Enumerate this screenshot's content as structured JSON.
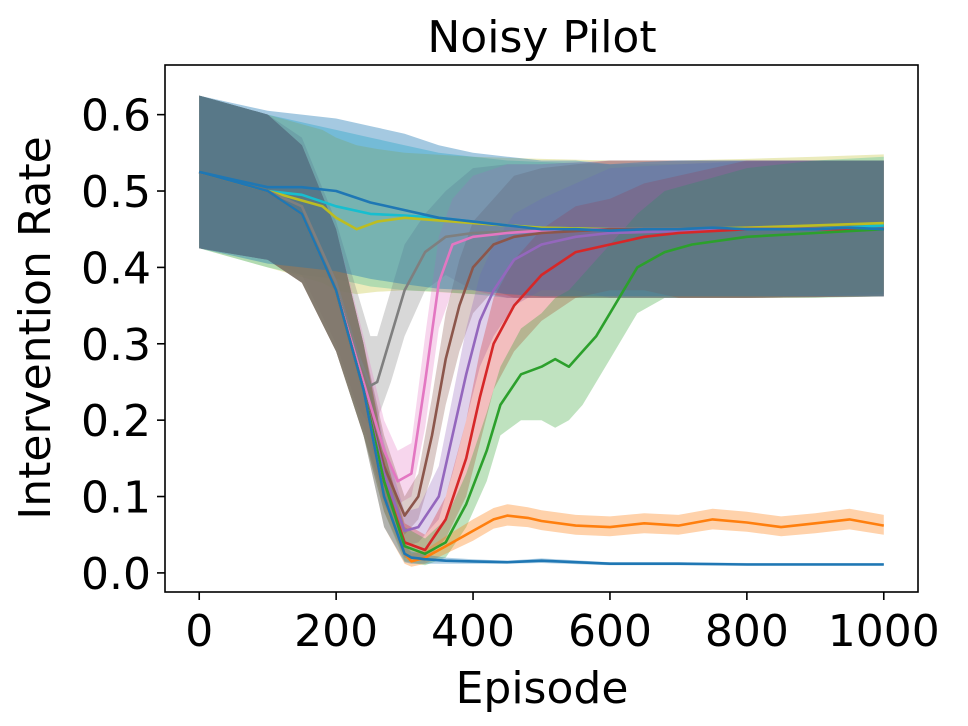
{
  "chart_data": {
    "type": "line",
    "title": "Noisy Pilot",
    "xlabel": "Episode",
    "ylabel": "Intervention Rate",
    "xlim": [
      -50,
      1050
    ],
    "ylim": [
      -0.025,
      0.665
    ],
    "xticks": [
      0,
      200,
      400,
      600,
      800,
      1000
    ],
    "xtick_labels": [
      "0",
      "200",
      "400",
      "600",
      "800",
      "1000"
    ],
    "yticks": [
      0.0,
      0.1,
      0.2,
      0.3,
      0.4,
      0.5,
      0.6
    ],
    "ytick_labels": [
      "0.0",
      "0.1",
      "0.2",
      "0.3",
      "0.4",
      "0.5",
      "0.6"
    ],
    "grid": false,
    "legend": false,
    "shaded_bands": true,
    "series": [
      {
        "color": "#17becf",
        "band_alpha": 0.35,
        "x": [
          0,
          20,
          60,
          100,
          150,
          200,
          250,
          300,
          350,
          400,
          450,
          500,
          600,
          700,
          800,
          900,
          1000
        ],
        "y": [
          0.525,
          0.52,
          0.51,
          0.5,
          0.495,
          0.48,
          0.47,
          0.468,
          0.465,
          0.46,
          0.455,
          0.452,
          0.45,
          0.45,
          0.45,
          0.45,
          0.455
        ],
        "lower": [
          0.425,
          0.42,
          0.41,
          0.4,
          0.39,
          0.385,
          0.375,
          0.37,
          0.368,
          0.365,
          0.36,
          0.36,
          0.36,
          0.36,
          0.36,
          0.362,
          0.365
        ],
        "upper": [
          0.625,
          0.62,
          0.61,
          0.6,
          0.59,
          0.58,
          0.57,
          0.56,
          0.55,
          0.545,
          0.54,
          0.538,
          0.535,
          0.535,
          0.538,
          0.54,
          0.545
        ]
      },
      {
        "color": "#bcbd22",
        "band_alpha": 0.3,
        "x": [
          0,
          60,
          120,
          180,
          200,
          230,
          260,
          300,
          400,
          500,
          600,
          700,
          800,
          900,
          1000
        ],
        "y": [
          0.525,
          0.51,
          0.495,
          0.48,
          0.465,
          0.45,
          0.46,
          0.465,
          0.458,
          0.452,
          0.45,
          0.45,
          0.452,
          0.455,
          0.458
        ],
        "lower": [
          0.425,
          0.41,
          0.395,
          0.38,
          0.37,
          0.365,
          0.368,
          0.37,
          0.365,
          0.362,
          0.362,
          0.362,
          0.362,
          0.365,
          0.368
        ],
        "upper": [
          0.625,
          0.61,
          0.595,
          0.58,
          0.57,
          0.56,
          0.555,
          0.55,
          0.545,
          0.542,
          0.54,
          0.54,
          0.542,
          0.545,
          0.548
        ]
      },
      {
        "color": "#7f7f7f",
        "band_alpha": 0.3,
        "x": [
          0,
          100,
          150,
          200,
          230,
          250,
          260,
          280,
          300,
          330,
          360,
          400,
          450,
          500,
          600,
          800,
          1000
        ],
        "y": [
          0.525,
          0.5,
          0.48,
          0.38,
          0.29,
          0.245,
          0.25,
          0.31,
          0.37,
          0.42,
          0.44,
          0.445,
          0.447,
          0.448,
          0.45,
          0.45,
          0.45
        ],
        "lower": [
          0.425,
          0.41,
          0.39,
          0.3,
          0.22,
          0.19,
          0.2,
          0.25,
          0.31,
          0.37,
          0.39,
          0.37,
          0.36,
          0.36,
          0.36,
          0.36,
          0.362
        ],
        "upper": [
          0.625,
          0.6,
          0.57,
          0.46,
          0.37,
          0.31,
          0.31,
          0.37,
          0.43,
          0.47,
          0.5,
          0.53,
          0.535,
          0.535,
          0.54,
          0.54,
          0.54
        ]
      },
      {
        "color": "#e377c2",
        "band_alpha": 0.3,
        "x": [
          0,
          100,
          150,
          200,
          240,
          270,
          290,
          310,
          330,
          350,
          370,
          400,
          450,
          500,
          600,
          800,
          1000
        ],
        "y": [
          0.525,
          0.5,
          0.47,
          0.37,
          0.25,
          0.16,
          0.12,
          0.13,
          0.25,
          0.38,
          0.43,
          0.44,
          0.445,
          0.448,
          0.45,
          0.45,
          0.45
        ],
        "lower": [
          0.425,
          0.41,
          0.38,
          0.29,
          0.19,
          0.12,
          0.09,
          0.1,
          0.19,
          0.32,
          0.37,
          0.37,
          0.36,
          0.36,
          0.36,
          0.36,
          0.362
        ],
        "upper": [
          0.625,
          0.6,
          0.56,
          0.45,
          0.31,
          0.2,
          0.16,
          0.17,
          0.31,
          0.44,
          0.49,
          0.52,
          0.535,
          0.535,
          0.54,
          0.54,
          0.54
        ]
      },
      {
        "color": "#8c564b",
        "band_alpha": 0.3,
        "x": [
          0,
          100,
          150,
          200,
          240,
          270,
          300,
          320,
          340,
          360,
          380,
          400,
          430,
          460,
          500,
          600,
          800,
          1000
        ],
        "y": [
          0.525,
          0.5,
          0.47,
          0.37,
          0.24,
          0.14,
          0.075,
          0.1,
          0.18,
          0.28,
          0.35,
          0.4,
          0.43,
          0.44,
          0.445,
          0.45,
          0.45,
          0.45
        ],
        "lower": [
          0.425,
          0.41,
          0.38,
          0.29,
          0.18,
          0.1,
          0.05,
          0.07,
          0.13,
          0.22,
          0.29,
          0.34,
          0.37,
          0.36,
          0.36,
          0.36,
          0.36,
          0.362
        ],
        "upper": [
          0.625,
          0.6,
          0.56,
          0.45,
          0.3,
          0.18,
          0.1,
          0.13,
          0.23,
          0.34,
          0.41,
          0.46,
          0.49,
          0.52,
          0.53,
          0.54,
          0.54,
          0.54
        ]
      },
      {
        "color": "#9467bd",
        "band_alpha": 0.3,
        "x": [
          0,
          100,
          150,
          200,
          240,
          270,
          300,
          320,
          350,
          370,
          390,
          410,
          430,
          460,
          500,
          550,
          600,
          800,
          1000
        ],
        "y": [
          0.525,
          0.5,
          0.47,
          0.37,
          0.24,
          0.13,
          0.055,
          0.06,
          0.1,
          0.18,
          0.26,
          0.33,
          0.37,
          0.41,
          0.43,
          0.44,
          0.445,
          0.45,
          0.45
        ],
        "lower": [
          0.425,
          0.41,
          0.38,
          0.29,
          0.18,
          0.09,
          0.035,
          0.04,
          0.07,
          0.13,
          0.2,
          0.27,
          0.31,
          0.35,
          0.37,
          0.37,
          0.36,
          0.36,
          0.362
        ],
        "upper": [
          0.625,
          0.6,
          0.56,
          0.45,
          0.3,
          0.17,
          0.08,
          0.085,
          0.14,
          0.23,
          0.32,
          0.39,
          0.43,
          0.47,
          0.49,
          0.51,
          0.53,
          0.54,
          0.54
        ]
      },
      {
        "color": "#d62728",
        "band_alpha": 0.3,
        "x": [
          0,
          100,
          150,
          200,
          240,
          270,
          300,
          330,
          360,
          390,
          410,
          430,
          460,
          500,
          550,
          600,
          650,
          700,
          800,
          1000
        ],
        "y": [
          0.525,
          0.5,
          0.47,
          0.37,
          0.24,
          0.12,
          0.04,
          0.03,
          0.07,
          0.15,
          0.23,
          0.3,
          0.35,
          0.39,
          0.42,
          0.43,
          0.44,
          0.445,
          0.45,
          0.45
        ],
        "lower": [
          0.425,
          0.41,
          0.38,
          0.29,
          0.18,
          0.08,
          0.02,
          0.015,
          0.045,
          0.1,
          0.17,
          0.24,
          0.29,
          0.33,
          0.36,
          0.37,
          0.37,
          0.36,
          0.36,
          0.362
        ],
        "upper": [
          0.625,
          0.6,
          0.56,
          0.45,
          0.3,
          0.16,
          0.065,
          0.05,
          0.1,
          0.2,
          0.29,
          0.36,
          0.41,
          0.45,
          0.48,
          0.49,
          0.51,
          0.52,
          0.54,
          0.54
        ]
      },
      {
        "color": "#2ca02c",
        "band_alpha": 0.3,
        "x": [
          0,
          100,
          150,
          200,
          240,
          270,
          300,
          330,
          360,
          390,
          420,
          440,
          470,
          500,
          520,
          540,
          560,
          580,
          600,
          640,
          680,
          720,
          800,
          900,
          1000
        ],
        "y": [
          0.525,
          0.5,
          0.47,
          0.37,
          0.24,
          0.12,
          0.035,
          0.025,
          0.04,
          0.09,
          0.16,
          0.22,
          0.26,
          0.27,
          0.28,
          0.27,
          0.29,
          0.31,
          0.34,
          0.4,
          0.42,
          0.43,
          0.44,
          0.445,
          0.45
        ],
        "lower": [
          0.425,
          0.41,
          0.38,
          0.29,
          0.18,
          0.08,
          0.015,
          0.01,
          0.02,
          0.06,
          0.12,
          0.18,
          0.2,
          0.2,
          0.19,
          0.2,
          0.22,
          0.25,
          0.28,
          0.34,
          0.36,
          0.36,
          0.36,
          0.36,
          0.362
        ],
        "upper": [
          0.625,
          0.6,
          0.56,
          0.45,
          0.3,
          0.16,
          0.06,
          0.045,
          0.07,
          0.13,
          0.21,
          0.27,
          0.32,
          0.34,
          0.36,
          0.37,
          0.39,
          0.41,
          0.43,
          0.47,
          0.5,
          0.51,
          0.53,
          0.54,
          0.54
        ]
      },
      {
        "color": "#ff7f0e",
        "band_alpha": 0.35,
        "x": [
          0,
          100,
          150,
          200,
          240,
          270,
          300,
          310,
          330,
          360,
          400,
          430,
          450,
          480,
          500,
          550,
          600,
          650,
          700,
          750,
          800,
          850,
          900,
          950,
          1000
        ],
        "y": [
          0.525,
          0.5,
          0.47,
          0.37,
          0.24,
          0.1,
          0.025,
          0.015,
          0.02,
          0.035,
          0.055,
          0.07,
          0.075,
          0.072,
          0.068,
          0.062,
          0.06,
          0.065,
          0.062,
          0.07,
          0.066,
          0.06,
          0.065,
          0.07,
          0.062
        ],
        "lower": [
          0.425,
          0.41,
          0.38,
          0.29,
          0.18,
          0.06,
          0.012,
          0.008,
          0.012,
          0.025,
          0.042,
          0.058,
          0.062,
          0.06,
          0.056,
          0.05,
          0.048,
          0.052,
          0.05,
          0.057,
          0.054,
          0.048,
          0.052,
          0.057,
          0.05
        ],
        "upper": [
          0.625,
          0.6,
          0.56,
          0.45,
          0.3,
          0.14,
          0.04,
          0.025,
          0.03,
          0.048,
          0.07,
          0.085,
          0.09,
          0.086,
          0.082,
          0.076,
          0.074,
          0.078,
          0.076,
          0.084,
          0.08,
          0.074,
          0.078,
          0.084,
          0.076
        ]
      },
      {
        "color": "#1f77b4",
        "band_alpha": 0.35,
        "x": [
          0,
          100,
          150,
          200,
          240,
          270,
          300,
          310,
          330,
          360,
          400,
          450,
          500,
          600,
          700,
          800,
          900,
          1000
        ],
        "y": [
          0.525,
          0.5,
          0.47,
          0.37,
          0.24,
          0.1,
          0.025,
          0.02,
          0.018,
          0.016,
          0.015,
          0.014,
          0.016,
          0.012,
          0.012,
          0.011,
          0.011,
          0.011
        ],
        "lower": [
          0.425,
          0.41,
          0.38,
          0.29,
          0.18,
          0.06,
          0.014,
          0.012,
          0.012,
          0.012,
          0.012,
          0.012,
          0.013,
          0.01,
          0.01,
          0.01,
          0.01,
          0.01
        ],
        "upper": [
          0.625,
          0.6,
          0.56,
          0.45,
          0.3,
          0.14,
          0.035,
          0.028,
          0.024,
          0.02,
          0.018,
          0.016,
          0.019,
          0.014,
          0.014,
          0.013,
          0.013,
          0.013
        ]
      },
      {
        "color": "#1f77b4",
        "band_alpha": 0.4,
        "x": [
          0,
          50,
          100,
          150,
          200,
          250,
          300,
          350,
          400,
          450,
          500,
          550,
          600,
          650,
          700,
          750,
          800,
          850,
          900,
          950,
          1000
        ],
        "y": [
          0.525,
          0.515,
          0.505,
          0.505,
          0.5,
          0.485,
          0.475,
          0.465,
          0.46,
          0.455,
          0.45,
          0.45,
          0.448,
          0.45,
          0.45,
          0.452,
          0.45,
          0.45,
          0.45,
          0.452,
          0.45
        ],
        "lower": [
          0.425,
          0.415,
          0.405,
          0.4,
          0.395,
          0.385,
          0.378,
          0.372,
          0.37,
          0.365,
          0.362,
          0.362,
          0.362,
          0.362,
          0.362,
          0.362,
          0.362,
          0.362,
          0.362,
          0.362,
          0.362
        ],
        "upper": [
          0.625,
          0.615,
          0.605,
          0.6,
          0.595,
          0.585,
          0.575,
          0.56,
          0.55,
          0.545,
          0.54,
          0.54,
          0.535,
          0.538,
          0.54,
          0.54,
          0.54,
          0.54,
          0.54,
          0.54,
          0.54
        ]
      }
    ]
  }
}
